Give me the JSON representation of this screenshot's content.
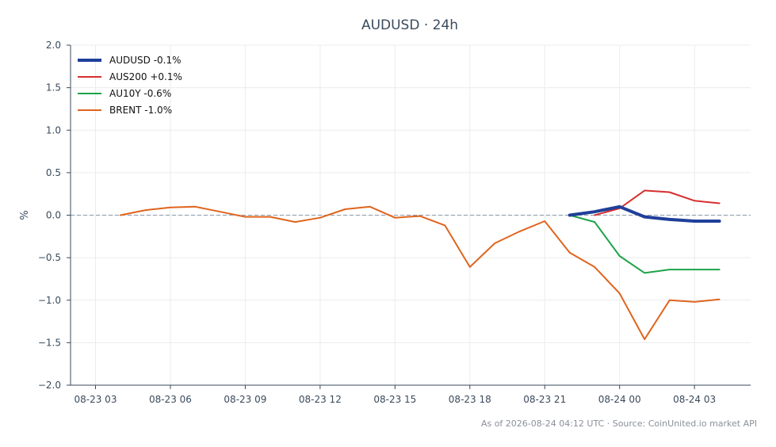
{
  "chart_data": {
    "type": "line",
    "title": "AUDUSD · 24h",
    "xlabel": "",
    "ylabel": "%",
    "ylim": [
      -2.0,
      2.0
    ],
    "yticks": [
      2.0,
      1.5,
      1.0,
      0.5,
      0.0,
      -0.5,
      -1.0,
      -1.5,
      -2.0
    ],
    "ytick_labels": [
      "2.0",
      "1.5",
      "1.0",
      "0.5",
      "0.0",
      "−0.5",
      "−1.0",
      "−1.5",
      "−2.0"
    ],
    "xlim": [
      "2026-08-23T02:00",
      "2026-08-24T05:15"
    ],
    "xticks": [
      "2026-08-23T03:00",
      "2026-08-23T06:00",
      "2026-08-23T09:00",
      "2026-08-23T12:00",
      "2026-08-23T15:00",
      "2026-08-23T18:00",
      "2026-08-23T21:00",
      "2026-08-24T00:00",
      "2026-08-24T03:00"
    ],
    "xtick_labels": [
      "08-23 03",
      "08-23 06",
      "08-23 09",
      "08-23 12",
      "08-23 15",
      "08-23 18",
      "08-23 21",
      "08-24 00",
      "08-24 03"
    ],
    "grid": true,
    "reference_line": 0.0,
    "legend_position": "top-left",
    "series": [
      {
        "name": "AUDUSD -0.1%",
        "color": "#1f3f9a",
        "width": 4,
        "x": [
          "2026-08-23T22:00",
          "2026-08-23T23:00",
          "2026-08-24T00:00",
          "2026-08-24T01:00",
          "2026-08-24T02:00",
          "2026-08-24T03:00",
          "2026-08-24T04:00"
        ],
        "values": [
          0.0,
          0.04,
          0.1,
          -0.02,
          -0.05,
          -0.07,
          -0.07
        ]
      },
      {
        "name": "AUS200 +0.1%",
        "color": "#d62f2f",
        "width": 2,
        "x": [
          "2026-08-23T23:00",
          "2026-08-24T00:00",
          "2026-08-24T01:00",
          "2026-08-24T02:00",
          "2026-08-24T03:00",
          "2026-08-24T04:00"
        ],
        "values": [
          0.0,
          0.08,
          0.29,
          0.27,
          0.17,
          0.14
        ]
      },
      {
        "name": "AU10Y -0.6%",
        "color": "#1fa34a",
        "width": 2,
        "x": [
          "2026-08-23T22:00",
          "2026-08-23T23:00",
          "2026-08-24T00:00",
          "2026-08-24T01:00",
          "2026-08-24T02:00",
          "2026-08-24T03:00",
          "2026-08-24T04:00"
        ],
        "values": [
          0.0,
          -0.08,
          -0.48,
          -0.68,
          -0.64,
          -0.64,
          -0.64
        ]
      },
      {
        "name": "BRENT -1.0%",
        "color": "#e0641e",
        "width": 2,
        "x": [
          "2026-08-23T04:00",
          "2026-08-23T05:00",
          "2026-08-23T06:00",
          "2026-08-23T07:00",
          "2026-08-23T08:00",
          "2026-08-23T09:00",
          "2026-08-23T10:00",
          "2026-08-23T11:00",
          "2026-08-23T12:00",
          "2026-08-23T13:00",
          "2026-08-23T14:00",
          "2026-08-23T15:00",
          "2026-08-23T16:00",
          "2026-08-23T17:00",
          "2026-08-23T18:00",
          "2026-08-23T19:00",
          "2026-08-23T20:00",
          "2026-08-23T21:00",
          "2026-08-23T22:00",
          "2026-08-23T23:00",
          "2026-08-24T00:00",
          "2026-08-24T01:00",
          "2026-08-24T02:00",
          "2026-08-24T03:00",
          "2026-08-24T04:00"
        ],
        "values": [
          0.0,
          0.06,
          0.09,
          0.1,
          0.04,
          -0.02,
          -0.02,
          -0.08,
          -0.03,
          0.07,
          0.1,
          -0.03,
          -0.01,
          -0.12,
          -0.61,
          -0.33,
          -0.19,
          -0.07,
          -0.44,
          -0.61,
          -0.92,
          -1.46,
          -1.0,
          -1.02,
          -0.99
        ]
      }
    ],
    "footer": "As of 2026-08-24 04:12 UTC · Source: CoinUnited.io market API"
  }
}
